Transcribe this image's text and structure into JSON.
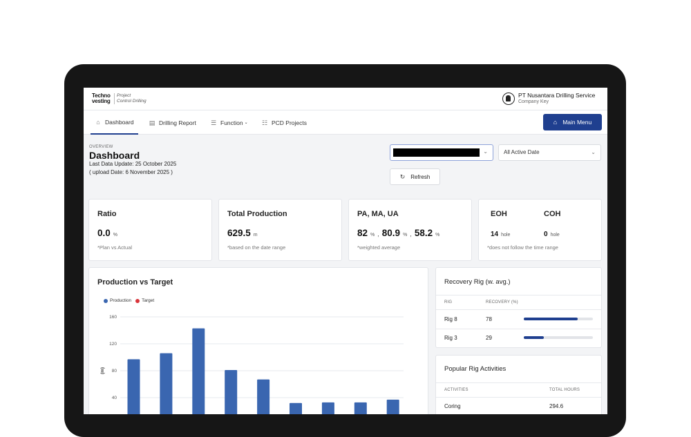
{
  "header": {
    "logo_line1": "Techno",
    "logo_line2": "vesting",
    "tagline1": "Project",
    "tagline2": "Control Drilling",
    "company_name": "PT Nusantara Drilling Service",
    "company_key": "Company Key"
  },
  "nav": {
    "items": [
      {
        "label": "Dashboard",
        "icon": "home-icon"
      },
      {
        "label": "Drilling Report",
        "icon": "report-icon"
      },
      {
        "label": "Function",
        "icon": "function-icon"
      },
      {
        "label": "PCD Projects",
        "icon": "projects-icon"
      }
    ],
    "main_menu_label": "Main Menu"
  },
  "overview": {
    "label": "OVERVIEW",
    "title": "Dashboard",
    "last_update": "Last Data Update: 25 October 2025",
    "upload_date": "( upload Date: 6 November 2025 )"
  },
  "filters": {
    "date_select": "All Active Date",
    "refresh_label": "Refresh"
  },
  "kpis": {
    "ratio": {
      "title": "Ratio",
      "value": "0.0",
      "unit": "%",
      "sub": "*Plan vs Actual"
    },
    "production": {
      "title": "Total Production",
      "value": "629.5",
      "unit": "m",
      "sub": "*based on the date range"
    },
    "pa_ma_ua": {
      "title": "PA, MA, UA",
      "pa": "82",
      "ma": "80.9",
      "ua": "58.2",
      "unit": "%",
      "sep": ",",
      "sub": "*weighted average"
    },
    "eoh_coh": {
      "eoh_title": "EOH",
      "eoh_value": "14",
      "coh_title": "COH",
      "coh_value": "0",
      "unit": "hole",
      "sub": "*does not follow the time range"
    }
  },
  "production_chart": {
    "title": "Production vs Target",
    "legend": [
      {
        "name": "Production",
        "color": "#3a66b0"
      },
      {
        "name": "Target",
        "color": "#d9343a"
      }
    ],
    "ylabel": "(m)"
  },
  "chart_data": {
    "type": "bar",
    "ylim": [
      0,
      160
    ],
    "yticks": [
      "160",
      "120",
      "80",
      "40"
    ],
    "series": [
      {
        "name": "Production",
        "values": [
          97,
          106,
          143,
          81,
          67,
          32,
          33,
          33,
          37
        ]
      }
    ],
    "grid": true,
    "legend_position": "top-left"
  },
  "recovery": {
    "title": "Recovery Rig (w. avg.)",
    "col_rig": "RIG",
    "col_recovery": "RECOVERY (%)",
    "rows": [
      {
        "rig": "Rig 8",
        "value": "78",
        "pct": 78
      },
      {
        "rig": "Rig 3",
        "value": "29",
        "pct": 29
      }
    ]
  },
  "activities": {
    "title": "Popular Rig Activities",
    "col_activity": "ACTIVITIES",
    "col_hours": "TOTAL HOURS",
    "rows": [
      {
        "activity": "Coring",
        "hours": "294.6"
      }
    ]
  }
}
